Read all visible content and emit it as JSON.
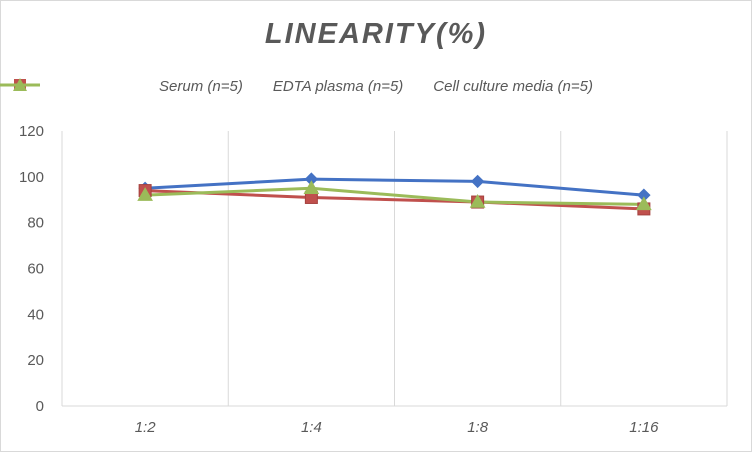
{
  "chart_data": {
    "type": "line",
    "title": "LINEARITY(%)",
    "categories": [
      "1:2",
      "1:4",
      "1:8",
      "1:16"
    ],
    "xlabel": "",
    "ylabel": "",
    "ylim": [
      0,
      120
    ],
    "yticks": [
      0,
      20,
      40,
      60,
      80,
      100,
      120
    ],
    "grid": "vertical",
    "legend_position": "top",
    "series": [
      {
        "name": "Serum (n=5)",
        "values": [
          95,
          99,
          98,
          92
        ],
        "color": "#4472c4",
        "marker": "diamond"
      },
      {
        "name": "EDTA plasma (n=5)",
        "values": [
          94,
          91,
          89,
          86
        ],
        "color": "#c0504d",
        "marker": "square"
      },
      {
        "name": "Cell culture media (n=5)",
        "values": [
          92,
          95,
          89,
          88
        ],
        "color": "#9bbb59",
        "marker": "triangle"
      }
    ]
  }
}
